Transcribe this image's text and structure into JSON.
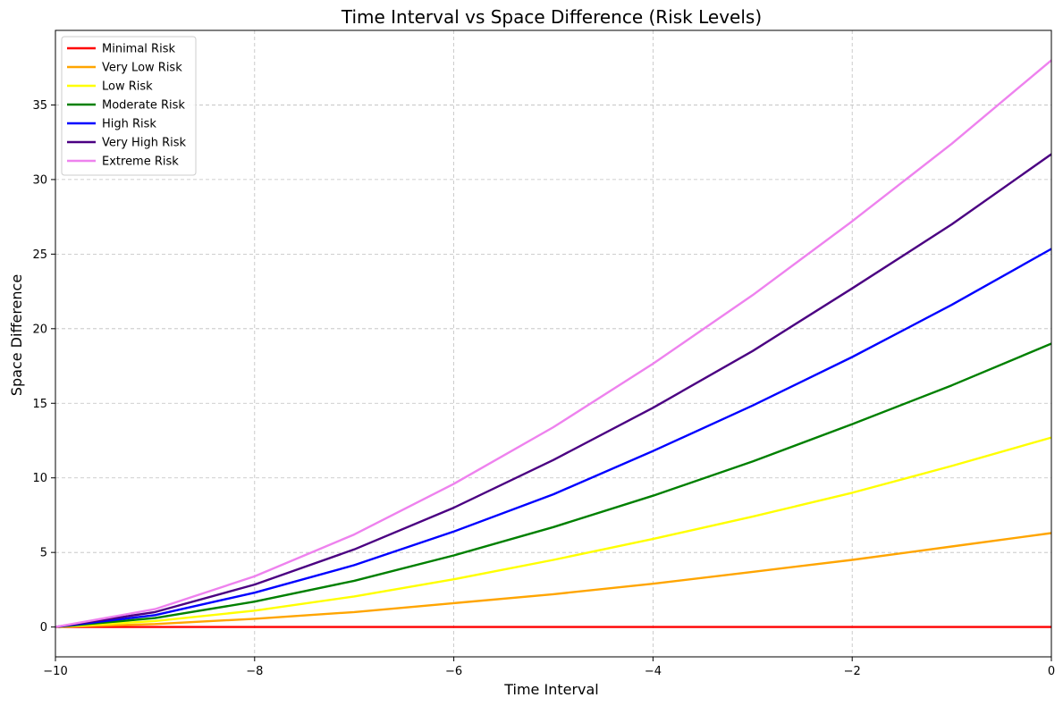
{
  "chart_data": {
    "type": "line",
    "title": "Time Interval vs Space Difference (Risk Levels)",
    "xlabel": "Time Interval",
    "ylabel": "Space Difference",
    "xlim": [
      -10,
      0
    ],
    "ylim": [
      -2,
      40
    ],
    "xticks": [
      -10,
      -8,
      -6,
      -4,
      -2,
      0
    ],
    "yticks": [
      0,
      5,
      10,
      15,
      20,
      25,
      30,
      35
    ],
    "xtick_labels": [
      "−10",
      "−8",
      "−6",
      "−4",
      "−2",
      "0"
    ],
    "ytick_labels": [
      "0",
      "5",
      "10",
      "15",
      "20",
      "25",
      "30",
      "35"
    ],
    "grid": true,
    "legend_position": "top-left",
    "x": [
      -10,
      -9,
      -8,
      -7,
      -6,
      -5,
      -4,
      -3,
      -2,
      -1,
      0
    ],
    "series": [
      {
        "name": "Minimal Risk",
        "color": "#ff0000",
        "values": [
          0,
          0,
          0,
          0,
          0,
          0,
          0,
          0,
          0,
          0,
          0
        ]
      },
      {
        "name": "Very Low Risk",
        "color": "#ffa500",
        "values": [
          0,
          0.2,
          0.55,
          1.0,
          1.6,
          2.2,
          2.9,
          3.7,
          4.5,
          5.4,
          6.3
        ]
      },
      {
        "name": "Low Risk",
        "color": "#ffff00",
        "values": [
          0,
          0.4,
          1.1,
          2.05,
          3.2,
          4.5,
          5.9,
          7.4,
          9.0,
          10.8,
          12.7
        ]
      },
      {
        "name": "Moderate Risk",
        "color": "#008000",
        "values": [
          0,
          0.6,
          1.7,
          3.1,
          4.8,
          6.7,
          8.8,
          11.1,
          13.6,
          16.2,
          19.0
        ]
      },
      {
        "name": "High Risk",
        "color": "#0000ff",
        "values": [
          0,
          0.8,
          2.3,
          4.15,
          6.4,
          8.9,
          11.8,
          14.85,
          18.1,
          21.6,
          25.35
        ]
      },
      {
        "name": "Very High Risk",
        "color": "#4b0082",
        "values": [
          0,
          1.0,
          2.85,
          5.2,
          8.0,
          11.2,
          14.7,
          18.5,
          22.7,
          27.0,
          31.7
        ]
      },
      {
        "name": "Extreme Risk",
        "color": "#ee82ee",
        "values": [
          0,
          1.2,
          3.4,
          6.2,
          9.6,
          13.4,
          17.65,
          22.25,
          27.2,
          32.4,
          38.0
        ]
      }
    ]
  }
}
